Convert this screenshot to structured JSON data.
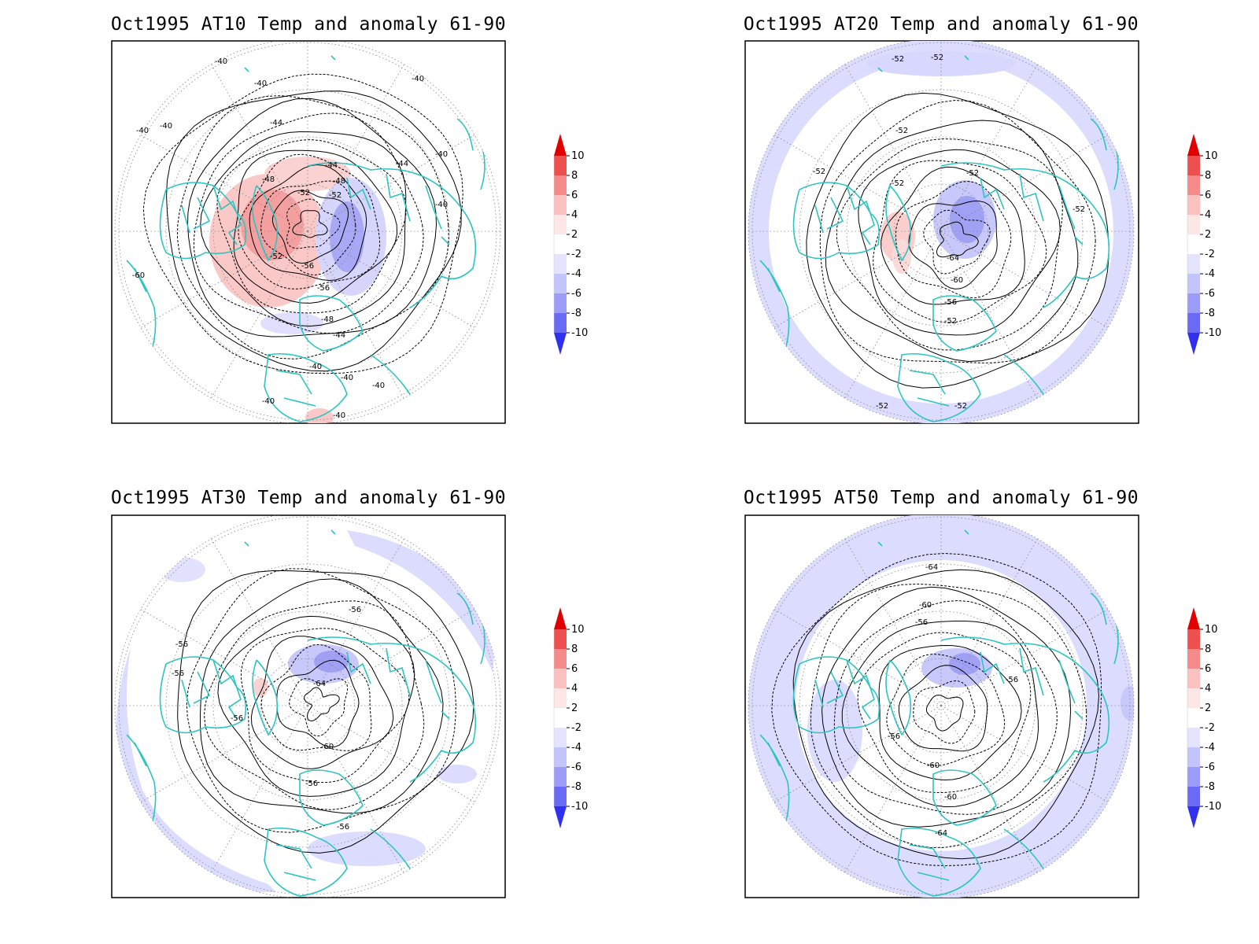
{
  "panels": [
    {
      "title": "Oct1995 AT10 Temp and anomaly 61-90",
      "contour_labels": [
        "-40",
        "-40",
        "-40",
        "-40",
        "-40",
        "-40",
        "-44",
        "-44",
        "-44",
        "-44",
        "-48",
        "-48",
        "-48",
        "-52",
        "-52",
        "-52",
        "-56",
        "-56",
        "-60",
        "-40",
        "-40",
        "-40",
        "-40",
        "-40",
        "-40"
      ],
      "anomaly_pattern": "warm-west-cold-east"
    },
    {
      "title": "Oct1995 AT20 Temp and anomaly 61-90",
      "contour_labels": [
        "-52",
        "-52",
        "-52",
        "-52",
        "-52",
        "-52",
        "-52",
        "-64",
        "-60",
        "-56",
        "-52",
        "-52",
        "-52"
      ],
      "anomaly_pattern": "cold-ring"
    },
    {
      "title": "Oct1995 AT30 Temp and anomaly 61-90",
      "contour_labels": [
        "-56",
        "-56",
        "-56",
        "-56",
        "-64",
        "-60",
        "-56",
        "-56"
      ],
      "anomaly_pattern": "cold-ring-partial"
    },
    {
      "title": "Oct1995 AT50 Temp and anomaly 61-90",
      "contour_labels": [
        "-64",
        "-60",
        "-56",
        "-56",
        "-56",
        "-60",
        "-60",
        "-64"
      ],
      "anomaly_pattern": "cold-ring-strong"
    }
  ],
  "colorbar": {
    "labels": [
      "10",
      "8",
      "6",
      "4",
      "2",
      "-2",
      "-4",
      "-6",
      "-8",
      "-10"
    ],
    "colors": [
      "#e00000",
      "#ee5050",
      "#f58a8a",
      "#fbc0c0",
      "#fde6e6",
      "#ffffff",
      "#e4e4ff",
      "#c4c4fc",
      "#9c9cf8",
      "#6a6af4",
      "#3030ee"
    ]
  }
}
